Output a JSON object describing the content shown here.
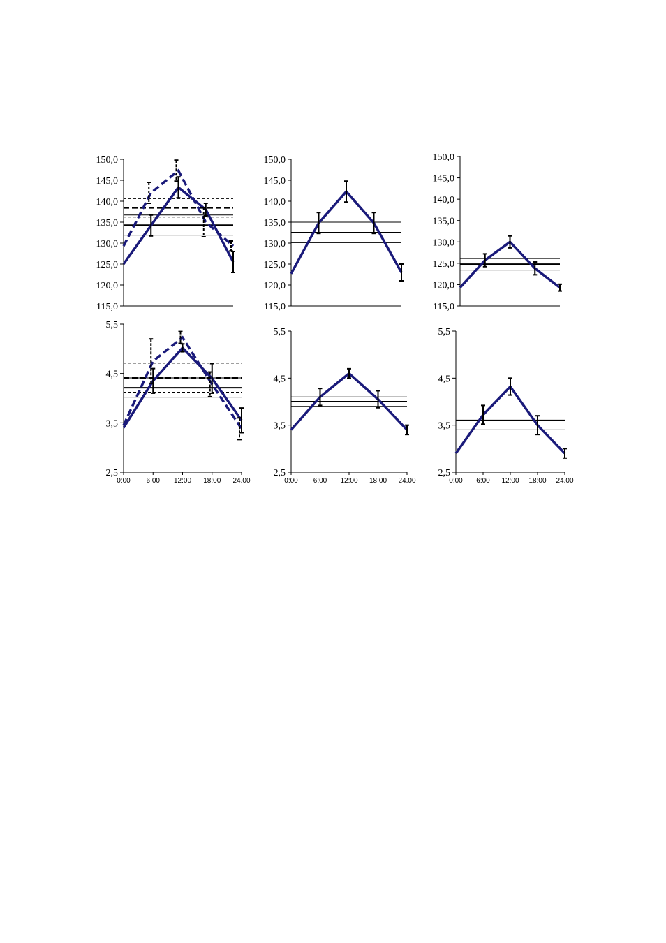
{
  "colors": {
    "series": "#1a1a7a",
    "axis": "#000000",
    "error": "#000000",
    "refline": "#000000"
  },
  "chart_data": [
    {
      "type": "line",
      "x": [
        "0:00",
        "6:00",
        "12:00",
        "18:00",
        "24.00"
      ],
      "ylim": [
        115,
        150
      ],
      "yticks": [
        "115,0",
        "120,0",
        "125,0",
        "130,0",
        "135,0",
        "140,0",
        "145,0",
        "150,0"
      ],
      "xticks_visible": false,
      "series": [
        {
          "values": [
            125.0,
            134.2,
            143.3,
            138.0,
            125.5
          ],
          "errors": [
            0,
            2.5,
            2.5,
            1.5,
            2.5
          ],
          "style": "solid"
        },
        {
          "values": [
            129.3,
            142.0,
            147.3,
            135.0,
            129.3
          ],
          "errors": [
            0,
            2.5,
            2.5,
            3.5,
            1.2
          ],
          "style": "dashed"
        }
      ],
      "reference_lines": [
        {
          "y": 134.3,
          "style": "solid-thick"
        },
        {
          "y": 136.7,
          "style": "solid-thin"
        },
        {
          "y": 131.9,
          "style": "solid-thin"
        },
        {
          "y": 138.4,
          "style": "dashed-thick"
        },
        {
          "y": 140.6,
          "style": "dashed-thin"
        },
        {
          "y": 136.2,
          "style": "dashed-thin"
        }
      ]
    },
    {
      "type": "line",
      "x": [
        "0:00",
        "6:00",
        "12:00",
        "18:00",
        "24.00"
      ],
      "ylim": [
        115,
        150
      ],
      "yticks": [
        "115,0",
        "120,0",
        "125,0",
        "130,0",
        "135,0",
        "140,0",
        "145,0",
        "150,0"
      ],
      "xticks_visible": false,
      "series": [
        {
          "values": [
            122.7,
            134.8,
            142.3,
            134.8,
            123.0
          ],
          "errors": [
            0,
            2.5,
            2.5,
            2.5,
            2.0
          ],
          "style": "solid"
        }
      ],
      "reference_lines": [
        {
          "y": 132.5,
          "style": "solid-thick"
        },
        {
          "y": 135.0,
          "style": "solid-thin"
        },
        {
          "y": 130.1,
          "style": "solid-thin"
        }
      ]
    },
    {
      "type": "line",
      "x": [
        "0:00",
        "6:00",
        "12:00",
        "18:00",
        "24.00"
      ],
      "ylim": [
        115,
        150
      ],
      "yticks": [
        "115,0",
        "120,0",
        "125,0",
        "130,0",
        "135,0",
        "140,0",
        "145,0",
        "150,0"
      ],
      "xticks_visible": false,
      "series": [
        {
          "values": [
            119.3,
            125.7,
            130.0,
            123.8,
            119.3
          ],
          "errors": [
            0,
            1.5,
            1.4,
            1.5,
            0.8
          ],
          "style": "solid"
        }
      ],
      "reference_lines": [
        {
          "y": 124.8,
          "style": "solid-thick"
        },
        {
          "y": 126.1,
          "style": "solid-thin"
        },
        {
          "y": 123.4,
          "style": "solid-thin"
        }
      ]
    },
    {
      "type": "line",
      "x": [
        "0:00",
        "6:00",
        "12:00",
        "18:00",
        "24.00"
      ],
      "ylim": [
        2.5,
        5.5
      ],
      "yticks": [
        "2,5",
        "3,5",
        "4,5",
        "5,5"
      ],
      "xticks_visible": true,
      "series": [
        {
          "values": [
            3.4,
            4.35,
            5.02,
            4.4,
            3.55
          ],
          "errors": [
            0,
            0.25,
            0.08,
            0.3,
            0.25
          ],
          "style": "solid"
        },
        {
          "values": [
            3.45,
            4.75,
            5.23,
            4.28,
            3.38
          ],
          "errors": [
            0,
            0.45,
            0.12,
            0.25,
            0.22
          ],
          "style": "dashed"
        }
      ],
      "reference_lines": [
        {
          "y": 4.21,
          "style": "solid-thick"
        },
        {
          "y": 4.41,
          "style": "solid-thin"
        },
        {
          "y": 4.02,
          "style": "solid-thin"
        },
        {
          "y": 4.41,
          "style": "dashed-thick"
        },
        {
          "y": 4.71,
          "style": "dashed-thin"
        },
        {
          "y": 4.12,
          "style": "dashed-thin"
        }
      ]
    },
    {
      "type": "line",
      "x": [
        "0:00",
        "6:00",
        "12:00",
        "18:00",
        "24.00"
      ],
      "ylim": [
        2.5,
        5.5
      ],
      "yticks": [
        "2,5",
        "3,5",
        "4,5",
        "5,5"
      ],
      "xticks_visible": true,
      "series": [
        {
          "values": [
            3.4,
            4.1,
            4.6,
            4.05,
            3.4
          ],
          "errors": [
            0,
            0.18,
            0.1,
            0.18,
            0.1
          ],
          "style": "solid"
        }
      ],
      "reference_lines": [
        {
          "y": 4.0,
          "style": "solid-thick"
        },
        {
          "y": 4.1,
          "style": "solid-thin"
        },
        {
          "y": 3.9,
          "style": "solid-thin"
        }
      ]
    },
    {
      "type": "line",
      "x": [
        "0:00",
        "6:00",
        "12:00",
        "18:00",
        "24.00"
      ],
      "ylim": [
        2.5,
        5.5
      ],
      "yticks": [
        "2,5",
        "3,5",
        "4,5",
        "5,5"
      ],
      "xticks_visible": true,
      "series": [
        {
          "values": [
            2.9,
            3.72,
            4.32,
            3.5,
            2.9
          ],
          "errors": [
            0,
            0.2,
            0.18,
            0.2,
            0.1
          ],
          "style": "solid"
        }
      ],
      "reference_lines": [
        {
          "y": 3.6,
          "style": "solid-thick"
        },
        {
          "y": 3.8,
          "style": "solid-thin"
        },
        {
          "y": 3.4,
          "style": "solid-thin"
        }
      ]
    }
  ]
}
